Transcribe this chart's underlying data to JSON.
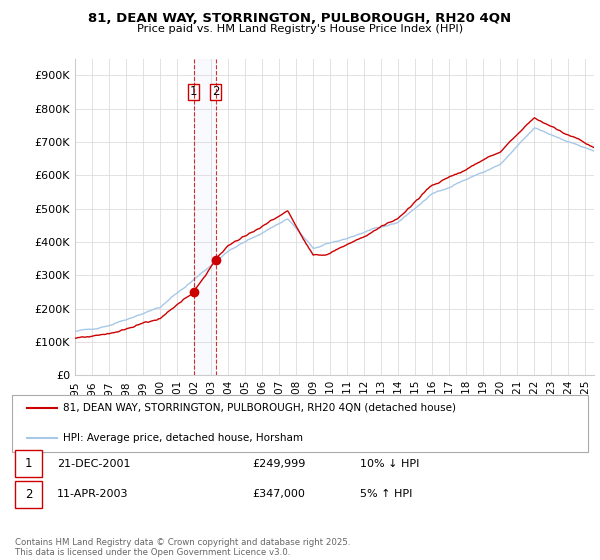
{
  "title_line1": "81, DEAN WAY, STORRINGTON, PULBOROUGH, RH20 4QN",
  "title_line2": "Price paid vs. HM Land Registry's House Price Index (HPI)",
  "ylim": [
    0,
    950000
  ],
  "ytick_values": [
    0,
    100000,
    200000,
    300000,
    400000,
    500000,
    600000,
    700000,
    800000,
    900000
  ],
  "ytick_labels": [
    "£0",
    "£100K",
    "£200K",
    "£300K",
    "£400K",
    "£500K",
    "£600K",
    "£700K",
    "£800K",
    "£900K"
  ],
  "line_color_hpi": "#a8c8e8",
  "line_color_price": "#cc0000",
  "vline_color": "#cc0000",
  "transaction1_date": 2001.97,
  "transaction1_price": 249999,
  "transaction2_date": 2003.27,
  "transaction2_price": 347000,
  "legend_price_label": "81, DEAN WAY, STORRINGTON, PULBOROUGH, RH20 4QN (detached house)",
  "legend_hpi_label": "HPI: Average price, detached house, Horsham",
  "table_rows": [
    {
      "num": "1",
      "date": "21-DEC-2001",
      "price": "£249,999",
      "hpi": "10% ↓ HPI"
    },
    {
      "num": "2",
      "date": "11-APR-2003",
      "price": "£347,000",
      "hpi": "5% ↑ HPI"
    }
  ],
  "footer": "Contains HM Land Registry data © Crown copyright and database right 2025.\nThis data is licensed under the Open Government Licence v3.0.",
  "grid_color": "#dddddd",
  "start_year": 1995,
  "end_year": 2025
}
